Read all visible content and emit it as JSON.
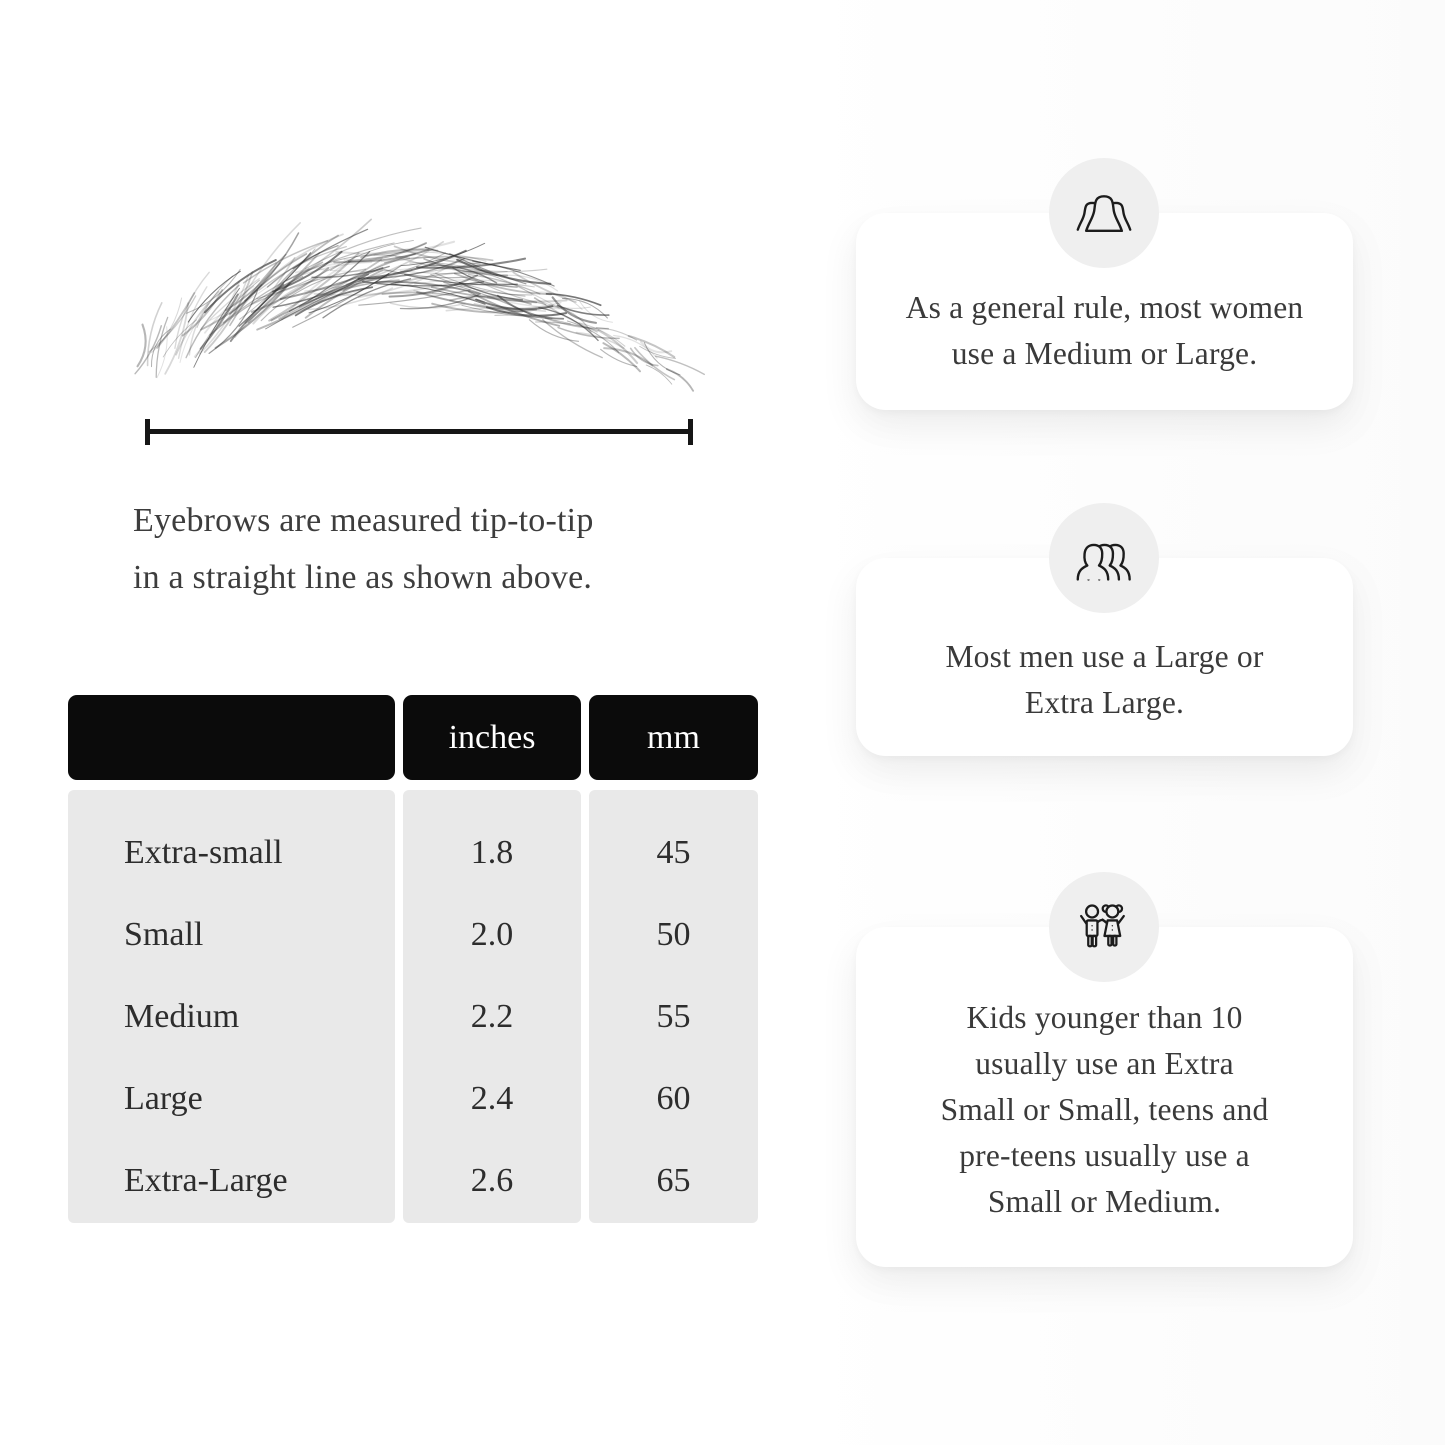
{
  "page": {
    "background": "#ffffff"
  },
  "diagram": {
    "illustration": "eyebrow-sketch",
    "caption_lines": [
      "Eyebrows are measured tip-to-tip",
      "in a straight line as shown above."
    ]
  },
  "size_table": {
    "columns": [
      "",
      "inches",
      "mm"
    ],
    "rows": [
      {
        "label": "Extra-small",
        "inches": "1.8",
        "mm": "45"
      },
      {
        "label": "Small",
        "inches": "2.0",
        "mm": "50"
      },
      {
        "label": "Medium",
        "inches": "2.2",
        "mm": "55"
      },
      {
        "label": "Large",
        "inches": "2.4",
        "mm": "60"
      },
      {
        "label": "Extra-Large",
        "inches": "2.6",
        "mm": "65"
      }
    ],
    "header_bg": "#0b0b0b",
    "header_text_color": "#ffffff",
    "body_bg": "#e9e9e9"
  },
  "cards": [
    {
      "icon": "women-group-icon",
      "lines": [
        "As a general rule, most women",
        "use a Medium or Large."
      ]
    },
    {
      "icon": "men-group-icon",
      "lines": [
        "Most men use a Large or",
        "Extra Large."
      ]
    },
    {
      "icon": "children-icon",
      "lines": [
        "Kids younger than 10",
        "usually use an Extra",
        "Small or Small, teens and",
        "pre-teens usually use a",
        "Small or Medium."
      ]
    }
  ]
}
